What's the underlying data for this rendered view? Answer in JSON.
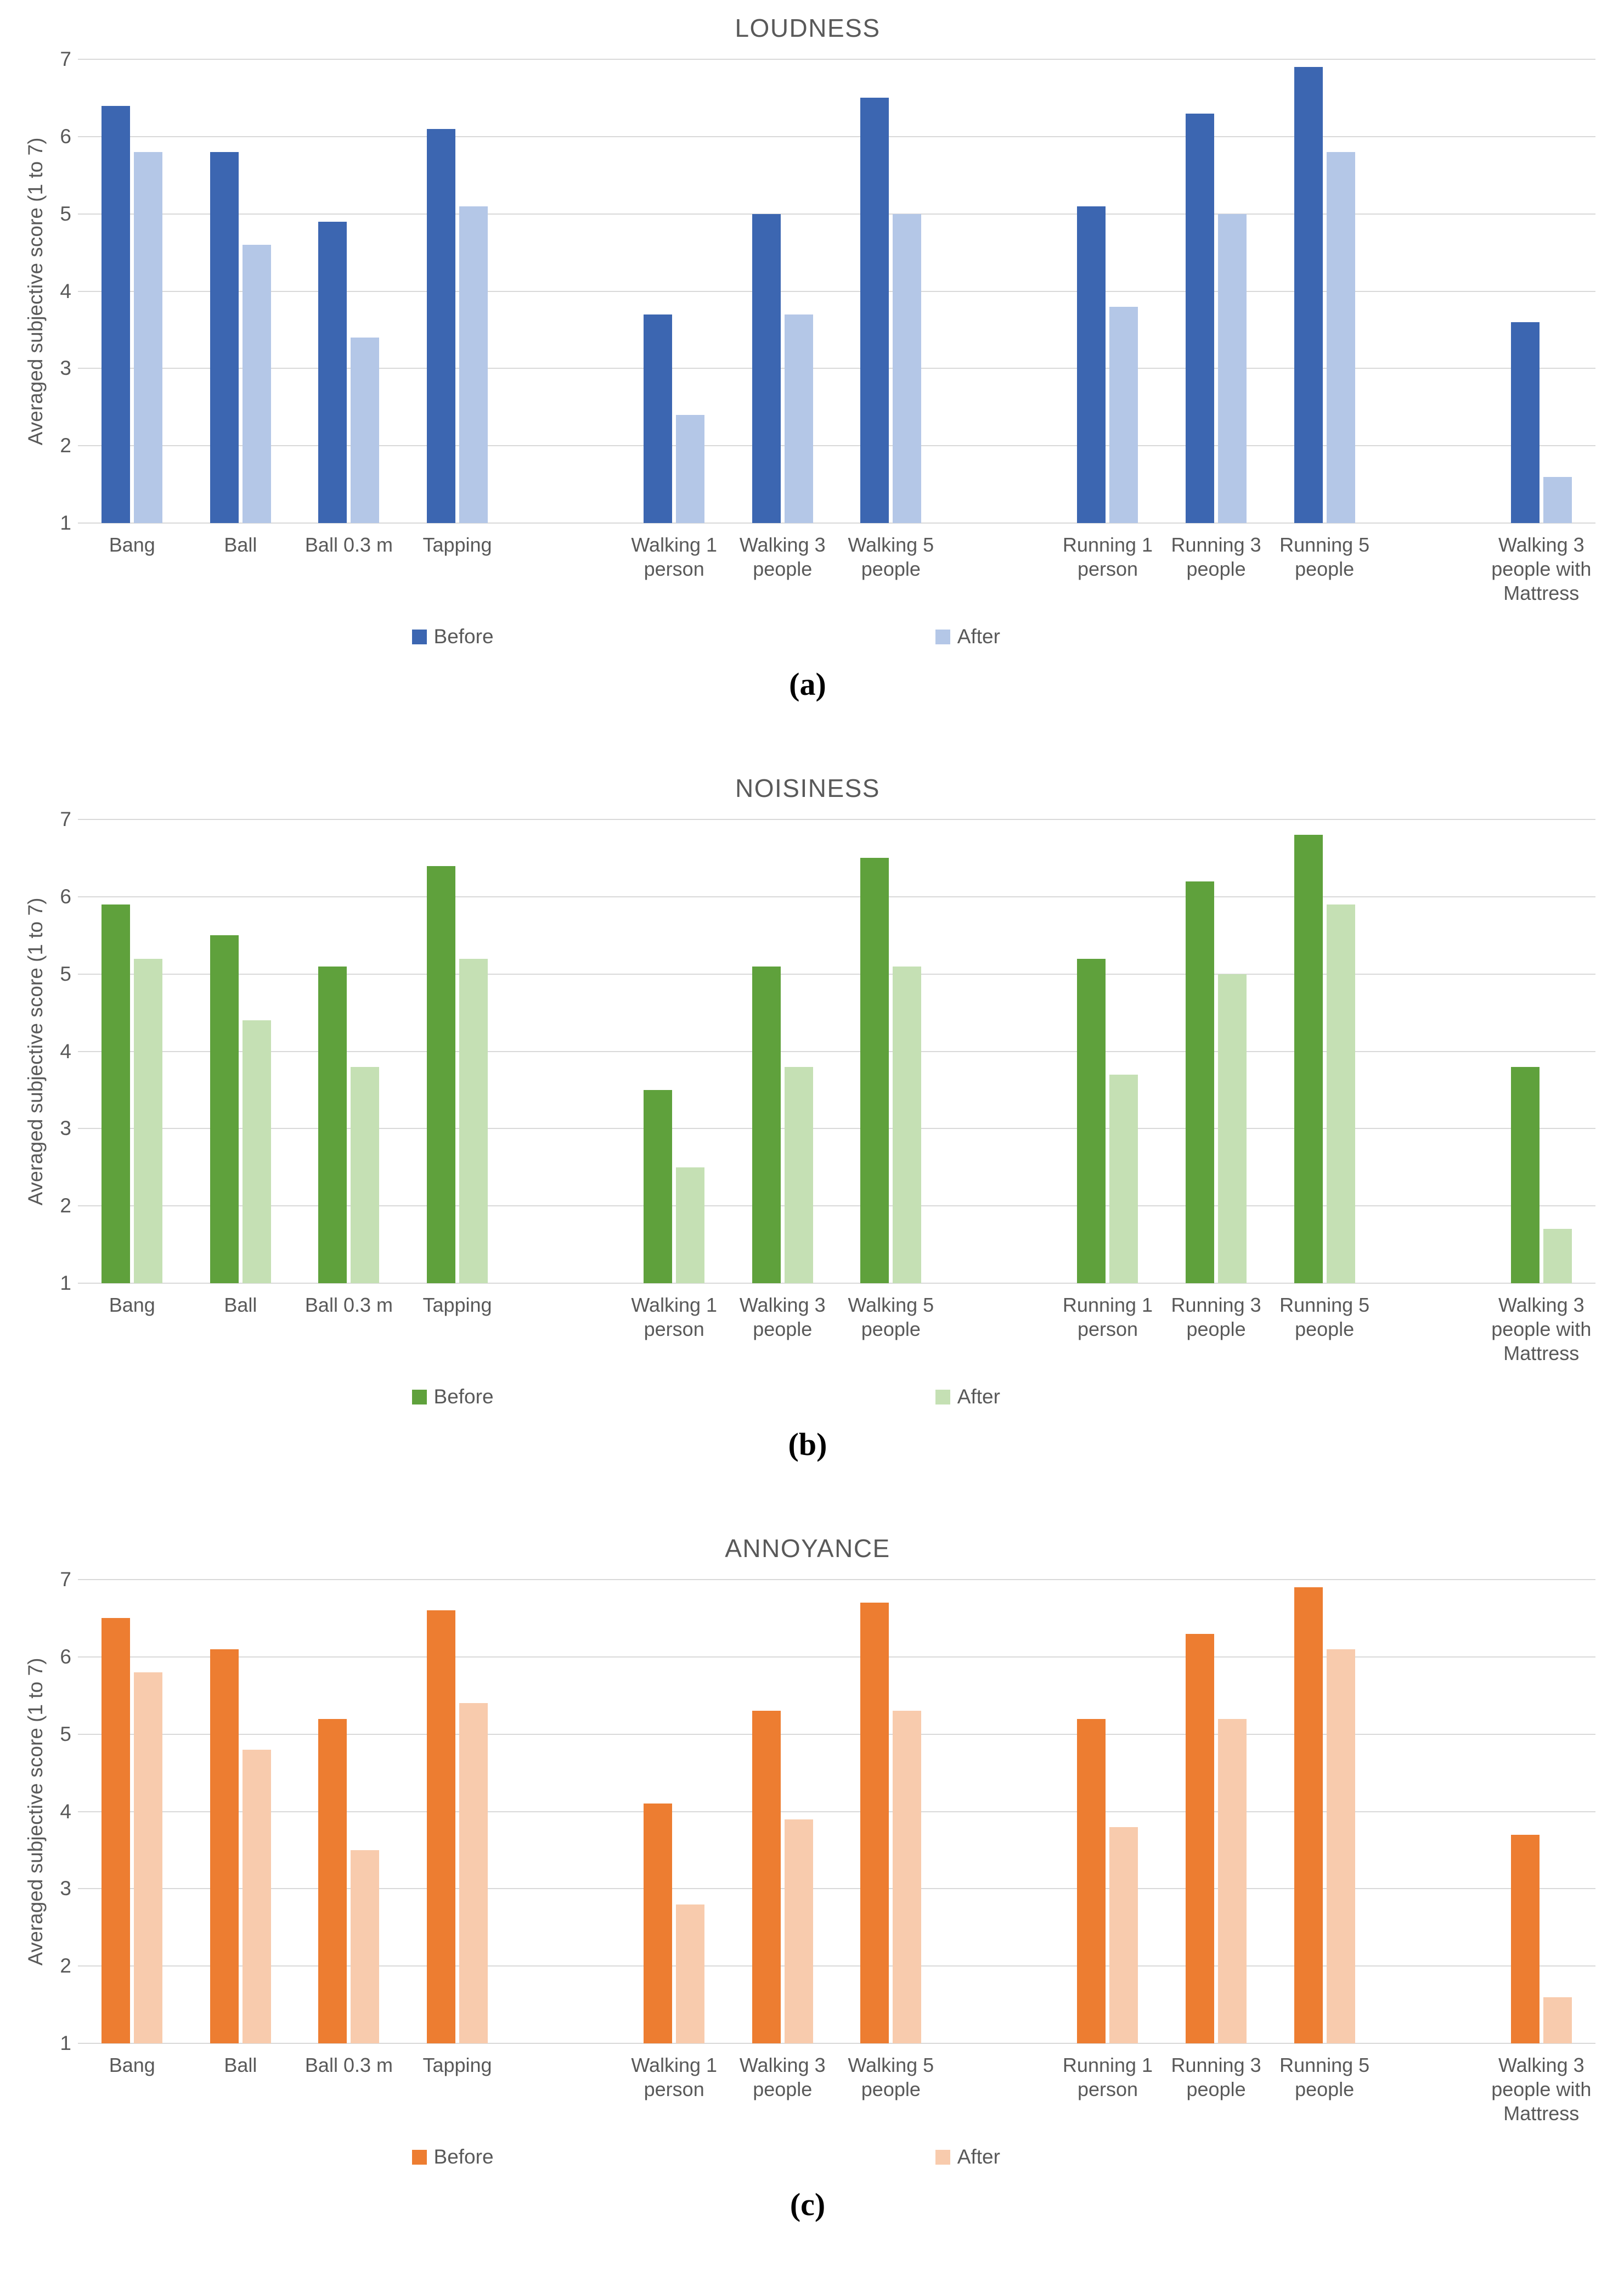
{
  "chart_data": [
    {
      "type": "bar",
      "title": "LOUDNESS",
      "sublabel": "(a)",
      "ylabel": "Averaged subjective score (1 to 7)",
      "ylim": [
        1,
        7
      ],
      "yticks": [
        1,
        2,
        3,
        4,
        5,
        6,
        7
      ],
      "grid": true,
      "legend_position": "bottom",
      "categories": [
        "Bang",
        "Ball",
        "Ball 0.3 m",
        "Tapping",
        "Walking 1 person",
        "Walking 3 people",
        "Walking 5 people",
        "Running 1 person",
        "Running 3 people",
        "Running 5 people",
        "Walking 3 people with Mattress"
      ],
      "slot_map": [
        0,
        1,
        2,
        3,
        null,
        4,
        5,
        6,
        null,
        7,
        8,
        9,
        null,
        10
      ],
      "series": [
        {
          "name": "Before",
          "color": "#3C66B1",
          "values": [
            6.4,
            5.8,
            4.9,
            6.1,
            3.7,
            5.0,
            6.5,
            5.1,
            6.3,
            6.9,
            3.6
          ]
        },
        {
          "name": "After",
          "color": "#B4C7E7",
          "values": [
            5.8,
            4.6,
            3.4,
            5.1,
            2.4,
            3.7,
            5.0,
            3.8,
            5.0,
            5.8,
            1.6
          ]
        }
      ]
    },
    {
      "type": "bar",
      "title": "NOISINESS",
      "sublabel": "(b)",
      "ylabel": "Averaged subjective score (1 to 7)",
      "ylim": [
        1,
        7
      ],
      "yticks": [
        1,
        2,
        3,
        4,
        5,
        6,
        7
      ],
      "grid": true,
      "legend_position": "bottom",
      "categories": [
        "Bang",
        "Ball",
        "Ball 0.3 m",
        "Tapping",
        "Walking 1 person",
        "Walking 3 people",
        "Walking 5 people",
        "Running 1 person",
        "Running 3 people",
        "Running 5 people",
        "Walking 3 people with Mattress"
      ],
      "slot_map": [
        0,
        1,
        2,
        3,
        null,
        4,
        5,
        6,
        null,
        7,
        8,
        9,
        null,
        10
      ],
      "series": [
        {
          "name": "Before",
          "color": "#5FA13C",
          "values": [
            5.9,
            5.5,
            5.1,
            6.4,
            3.5,
            5.1,
            6.5,
            5.2,
            6.2,
            6.8,
            3.8
          ]
        },
        {
          "name": "After",
          "color": "#C5E0B4",
          "values": [
            5.2,
            4.4,
            3.8,
            5.2,
            2.5,
            3.8,
            5.1,
            3.7,
            5.0,
            5.9,
            1.7
          ]
        }
      ]
    },
    {
      "type": "bar",
      "title": "ANNOYANCE",
      "sublabel": "(c)",
      "ylabel": "Averaged subjective score (1 to 7)",
      "ylim": [
        1,
        7
      ],
      "yticks": [
        1,
        2,
        3,
        4,
        5,
        6,
        7
      ],
      "grid": true,
      "legend_position": "bottom",
      "categories": [
        "Bang",
        "Ball",
        "Ball 0.3 m",
        "Tapping",
        "Walking 1 person",
        "Walking 3 people",
        "Walking 5 people",
        "Running 1 person",
        "Running 3 people",
        "Running 5 people",
        "Walking 3 people with Mattress"
      ],
      "slot_map": [
        0,
        1,
        2,
        3,
        null,
        4,
        5,
        6,
        null,
        7,
        8,
        9,
        null,
        10
      ],
      "series": [
        {
          "name": "Before",
          "color": "#ED7D31",
          "values": [
            6.5,
            6.1,
            5.2,
            6.6,
            4.1,
            5.3,
            6.7,
            5.2,
            6.3,
            6.9,
            3.7
          ]
        },
        {
          "name": "After",
          "color": "#F8CBAD",
          "values": [
            5.8,
            4.8,
            3.5,
            5.4,
            2.8,
            3.9,
            5.3,
            3.8,
            5.2,
            6.1,
            1.6
          ]
        }
      ]
    }
  ],
  "colors": {
    "gridline": "#d9d9d9",
    "axis_text": "#595959",
    "title_text": "#595959"
  }
}
